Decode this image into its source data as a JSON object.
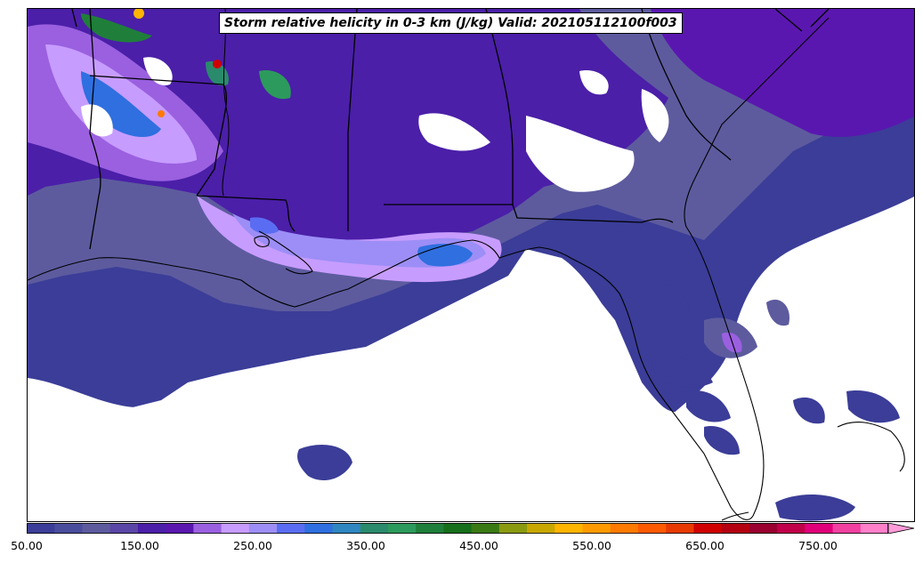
{
  "title": "Storm relative helicity in 0-3 km (J/kg) Valid: 202105112100f003",
  "colorbar": {
    "ticks": [
      "50.00",
      "150.00",
      "250.00",
      "350.00",
      "450.00",
      "550.00",
      "650.00",
      "750.00"
    ],
    "colors": [
      "#3b3d98",
      "#4a4d9c",
      "#5d5b9e",
      "#5a46a6",
      "#4b1fa8",
      "#5a17b0",
      "#9a60e0",
      "#c79cff",
      "#9c8ef6",
      "#5a6df2",
      "#2f6fe0",
      "#2f86c0",
      "#2a8a6c",
      "#2c9a5c",
      "#1f7f3a",
      "#166f1a",
      "#3a7a14",
      "#8a9a10",
      "#c8a800",
      "#ffb400",
      "#ff9a00",
      "#ff7a00",
      "#ff5a00",
      "#e83a00",
      "#d00000",
      "#b40010",
      "#9a0030",
      "#c0004a",
      "#e0007a",
      "#f040a0",
      "#ff80c8"
    ],
    "extend_color": "#ff9ad8"
  },
  "legend_colors": {
    "background_fill": "#3b3d98",
    "mid_fill": "#5d5b9e",
    "dark_purple": "#4b1fa8",
    "light_purple": "#c79cff",
    "blue": "#2f6fe0",
    "green": "#1f7f3a",
    "yellow": "#ffb400",
    "red": "#d00000"
  }
}
